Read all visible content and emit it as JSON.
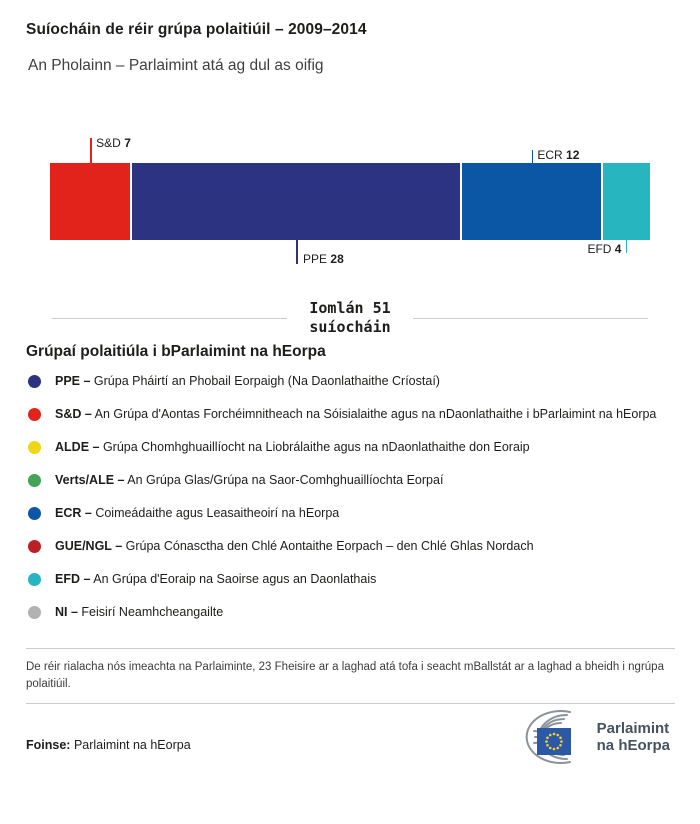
{
  "header": {
    "title": "Suíocháin de réir grúpa polaitiúil – 2009–2014",
    "subtitle": "An Pholainn – Parlaimint atá ag dul as oifig"
  },
  "chart_data": {
    "type": "bar",
    "variant": "stacked-horizontal-seat-bar",
    "title": "Suíocháin de réir grúpa polaitiúil – 2009–2014",
    "subtitle": "An Pholainn – Parlaimint atá ag dul as oifig",
    "total_seats": 51,
    "total_label": {
      "line1": "Iomlán 51",
      "line2": "suíocháin"
    },
    "segments": [
      {
        "group": "S&D",
        "seats": 7,
        "color": "#e2231c",
        "label_position": "above"
      },
      {
        "group": "PPE",
        "seats": 28,
        "color": "#2c3381",
        "label_position": "below"
      },
      {
        "group": "ECR",
        "seats": 12,
        "color": "#0b57a6",
        "label_position": "above"
      },
      {
        "group": "EFD",
        "seats": 4,
        "color": "#27b6c0",
        "label_position": "below"
      }
    ]
  },
  "legend": {
    "heading": "Grúpaí polaitiúla i bParlaimint na hEorpa",
    "items": [
      {
        "label": "PPE –",
        "desc": "Grúpa Pháirtí an Phobail Eorpaigh (Na Daonlathaithe Críostaí)",
        "color": "#2c3381"
      },
      {
        "label": "S&D –",
        "desc": "An Grúpa d'Aontas Forchéimnitheach na Sóisialaithe agus na nDaonlathaithe i bParlaimint na hEorpa",
        "color": "#e2231c"
      },
      {
        "label": "ALDE –",
        "desc": "Grúpa Chomhghuaillíocht na Liobrálaithe agus na nDaonlathaithe don Eoraip",
        "color": "#eed619"
      },
      {
        "label": "Verts/ALE –",
        "desc": "An Grúpa Glas/Grúpa na Saor-Comhghuaillíochta Eorpaí",
        "color": "#43a456"
      },
      {
        "label": "ECR –",
        "desc": "Coimeádaithe agus Leasaitheoirí na hEorpa",
        "color": "#0b57a6"
      },
      {
        "label": "GUE/NGL –",
        "desc": "Grúpa Cónasctha den Chlé Aontaithe Eorpach – den Chlé Ghlas Nordach",
        "color": "#bd1f26"
      },
      {
        "label": "EFD –",
        "desc": "An Grúpa d'Eoraip na Saoirse agus an Daonlathais",
        "color": "#27b6c0"
      },
      {
        "label": "NI –",
        "desc": "Feisirí Neamhcheangailte",
        "color": "#b1b1b1"
      }
    ]
  },
  "footnote": "De réir rialacha nós imeachta na Parlaiminte, 23 Fheisire ar a laghad atá tofa i seacht mBallstát ar a laghad a bheidh i ngrúpa polaitiúil.",
  "source": {
    "label": "Foinse:",
    "text": "Parlaimint na hEorpa"
  },
  "logo": {
    "line1": "Parlaimint",
    "line2": "na hEorpa"
  }
}
